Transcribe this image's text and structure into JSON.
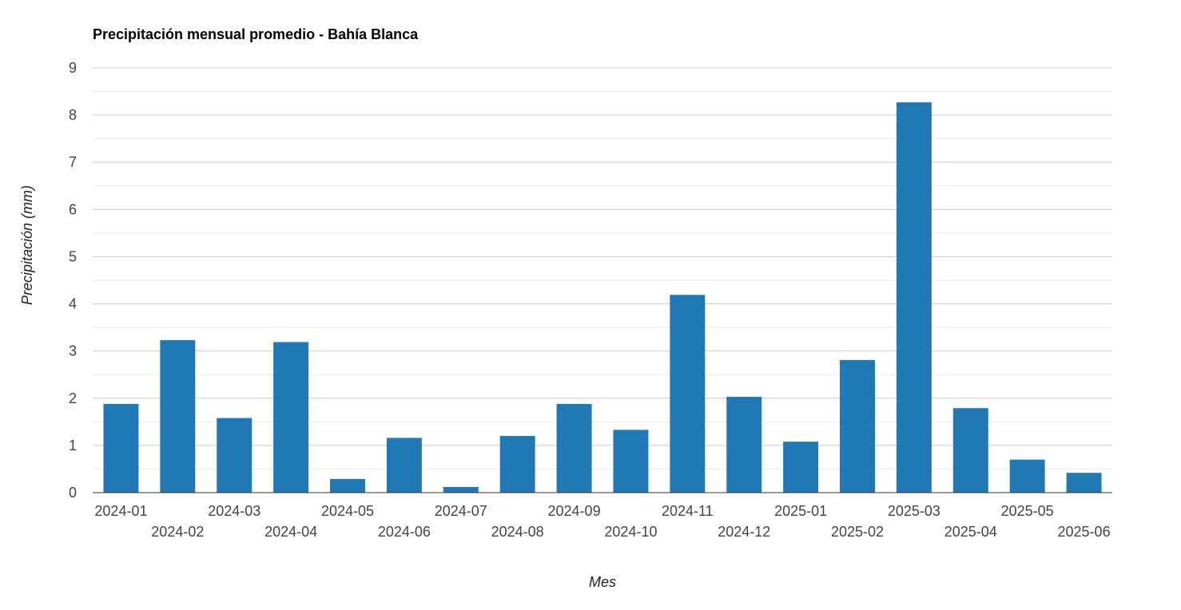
{
  "colors": {
    "bar": "#2078b4",
    "grid_major": "#cccccc",
    "grid_minor": "#ebebeb",
    "text": "#444444"
  },
  "chart_data": {
    "type": "bar",
    "title": "Precipitación mensual promedio - Bahía Blanca",
    "xlabel": "Mes",
    "ylabel": "Precipitación (mm)",
    "ylim": [
      0,
      9
    ],
    "yticks": [
      0,
      1,
      2,
      3,
      4,
      5,
      6,
      7,
      8,
      9
    ],
    "grid": true,
    "legend": "none",
    "categories": [
      "2024-01",
      "2024-02",
      "2024-03",
      "2024-04",
      "2024-05",
      "2024-06",
      "2024-07",
      "2024-08",
      "2024-09",
      "2024-10",
      "2024-11",
      "2024-12",
      "2025-01",
      "2025-02",
      "2025-03",
      "2025-04",
      "2025-05",
      "2025-06"
    ],
    "values": [
      1.88,
      3.23,
      1.58,
      3.19,
      0.29,
      1.16,
      0.12,
      1.2,
      1.88,
      1.33,
      4.19,
      2.03,
      1.08,
      2.81,
      8.27,
      1.79,
      0.7,
      0.42
    ]
  }
}
